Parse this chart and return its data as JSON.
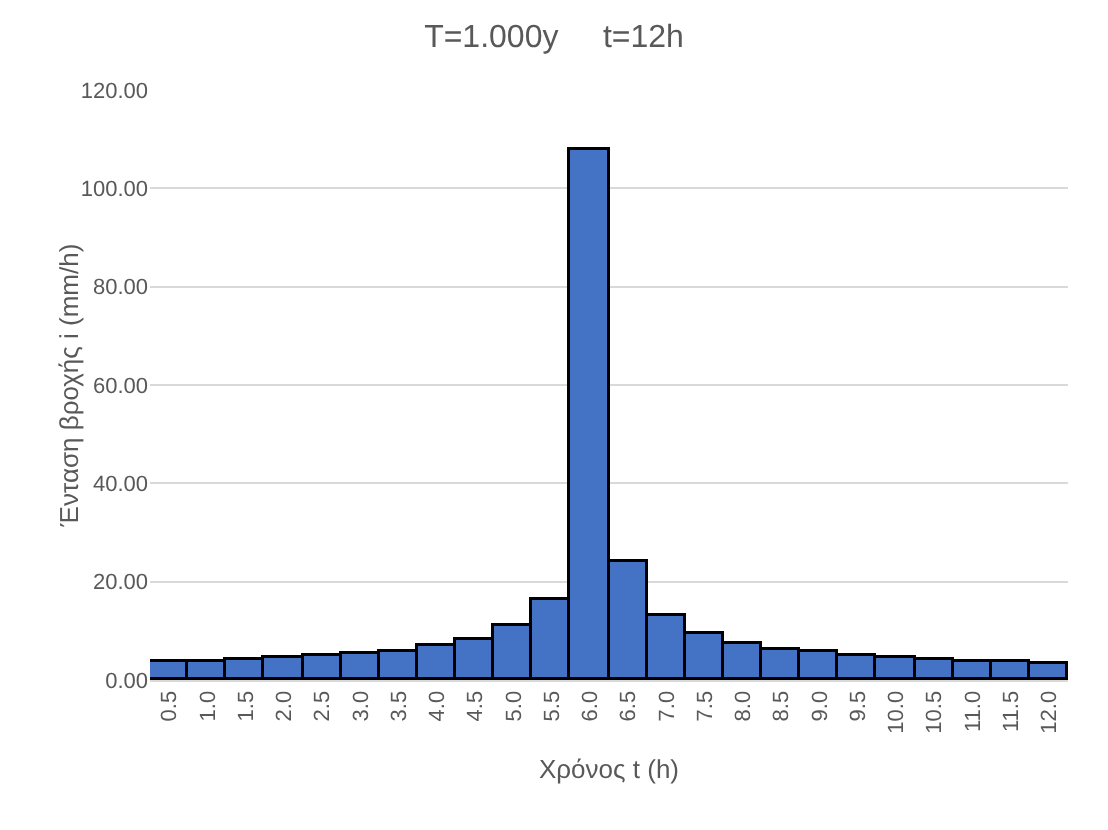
{
  "chart_data": {
    "type": "bar",
    "title": "T=1.000y     t=12h",
    "xlabel": "Χρόνος t (h)",
    "ylabel": "Ένταση βροχής i (mm/h)",
    "categories": [
      "0.5",
      "1.0",
      "1.5",
      "2.0",
      "2.5",
      "3.0",
      "3.5",
      "4.0",
      "4.5",
      "5.0",
      "5.5",
      "6.0",
      "6.5",
      "7.0",
      "7.5",
      "8.0",
      "8.5",
      "9.0",
      "9.5",
      "10.0",
      "10.5",
      "11.0",
      "11.5",
      "12.0"
    ],
    "values": [
      3.5,
      3.6,
      4.0,
      4.3,
      4.7,
      5.2,
      5.9,
      6.8,
      8.2,
      10.8,
      16.3,
      107.7,
      24.0,
      13.0,
      9.5,
      7.5,
      6.3,
      5.5,
      4.9,
      4.4,
      4.1,
      3.8,
      3.5,
      3.3
    ],
    "color": "#4472c4",
    "ylim": [
      0,
      120
    ],
    "yticks": [
      {
        "value": 0,
        "label": "0.00"
      },
      {
        "value": 20,
        "label": "20.00"
      },
      {
        "value": 40,
        "label": "40.00"
      },
      {
        "value": 60,
        "label": "60.00"
      },
      {
        "value": 80,
        "label": "80.00"
      },
      {
        "value": 100,
        "label": "100.00"
      },
      {
        "value": 120,
        "label": "120.00"
      }
    ],
    "grid": "y",
    "legend": false
  }
}
